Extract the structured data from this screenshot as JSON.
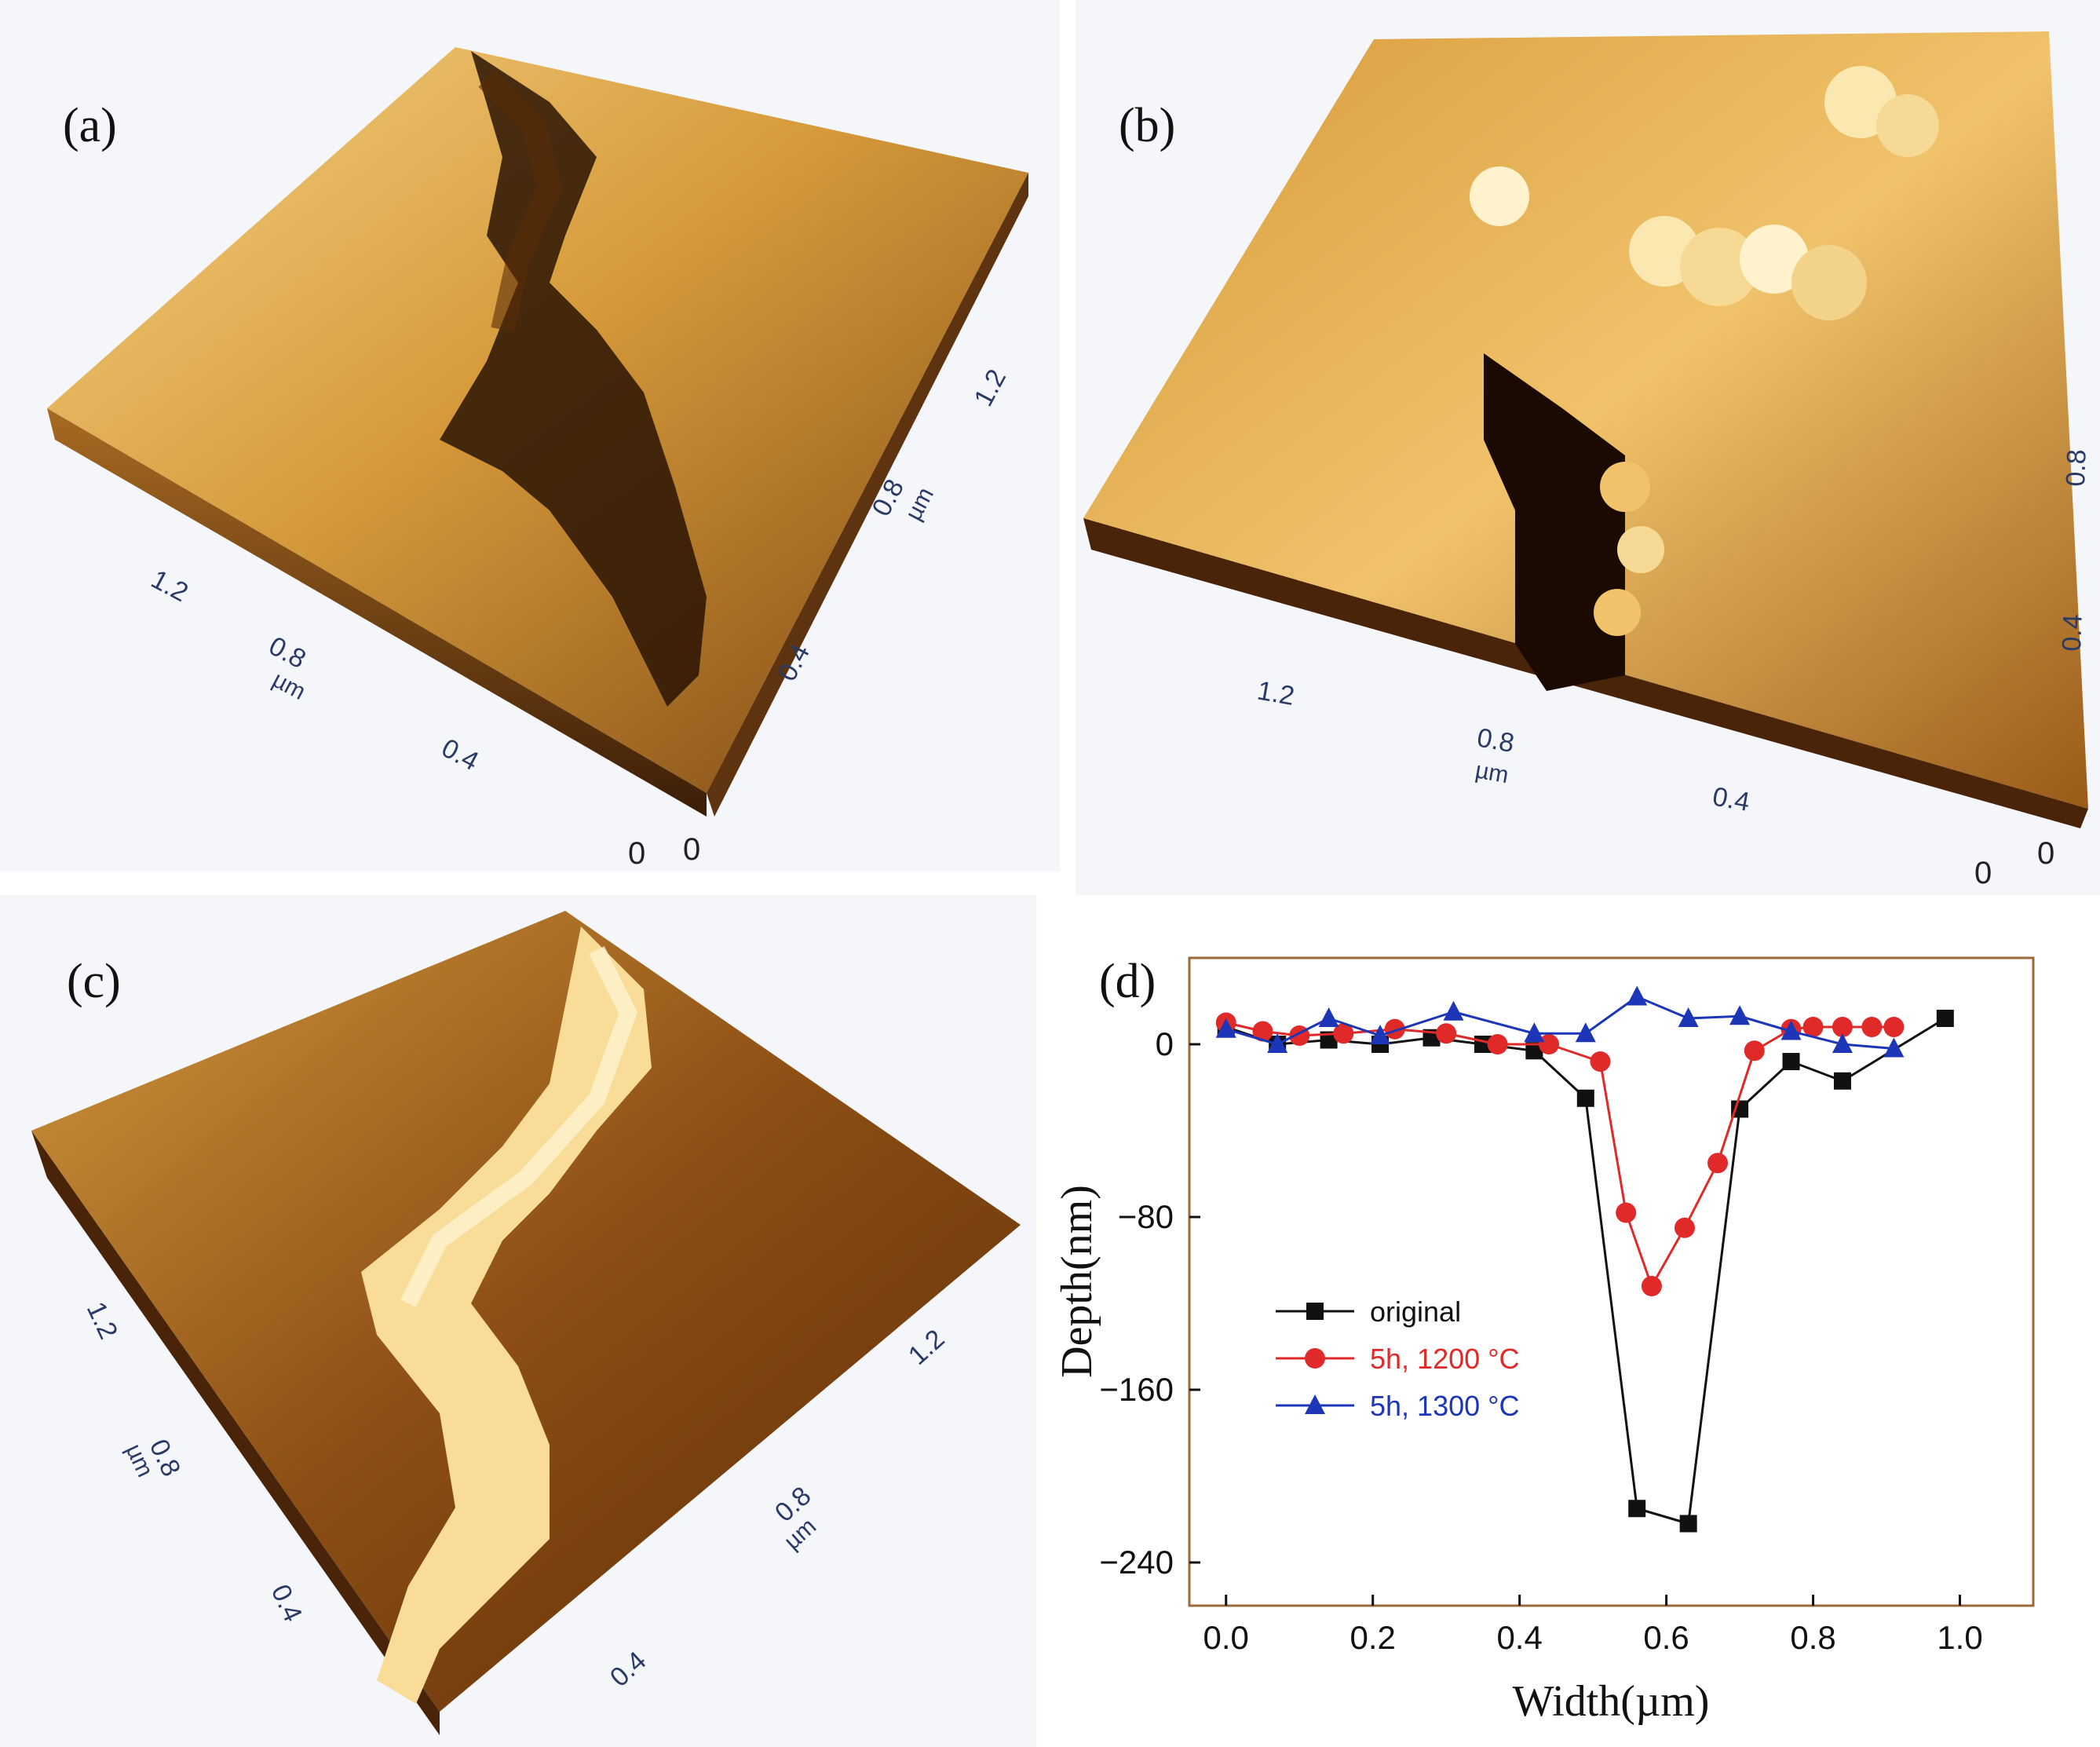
{
  "panels": {
    "a": {
      "label": "(a)",
      "ticks": [
        "1.2",
        "0.8",
        "0.4",
        "0.8",
        "0.4",
        "1.2"
      ],
      "unit": "µm",
      "zeros": [
        "0",
        "0"
      ]
    },
    "b": {
      "label": "(b)",
      "ticks": [
        "1.2",
        "0.8",
        "0.4",
        "0.8",
        "0.4"
      ],
      "unit": "µm",
      "zeros": [
        "0",
        "0"
      ]
    },
    "c": {
      "label": "(c)",
      "ticks": [
        "1.2",
        "0.8",
        "0.4",
        "0.4",
        "0.8",
        "1.2"
      ],
      "unit": "µm"
    },
    "d": {
      "label": "(d)"
    }
  },
  "colors": {
    "tan_light": "#f3cf7e",
    "tan_mid": "#c98a2c",
    "brown_dark": "#5a2c08",
    "black_ish": "#1a0c04",
    "bg": "#ffffff"
  },
  "chart_data": {
    "type": "line",
    "xlabel": "Width(µm)",
    "ylabel": "Depth(nm)",
    "xlim": [
      -0.05,
      1.1
    ],
    "ylim": [
      -260,
      40
    ],
    "xticks": [
      0.0,
      0.2,
      0.4,
      0.6,
      0.8,
      1.0
    ],
    "xtick_labels": [
      "0.0",
      "0.2",
      "0.4",
      "0.6",
      "0.8",
      "1.0"
    ],
    "yticks": [
      0,
      -80,
      -160,
      -240
    ],
    "ytick_labels": [
      "0",
      "−80",
      "−160",
      "−240"
    ],
    "legend_position": "center-left",
    "series": [
      {
        "name": "original",
        "color": "#111111",
        "marker": "square",
        "x": [
          0.0,
          0.07,
          0.14,
          0.21,
          0.28,
          0.35,
          0.42,
          0.49,
          0.56,
          0.63,
          0.7,
          0.77,
          0.84,
          0.98
        ],
        "y": [
          8,
          0,
          2,
          0,
          3,
          0,
          -3,
          -25,
          -215,
          -222,
          -30,
          -8,
          -17,
          12
        ]
      },
      {
        "name": "5h, 1200 °C",
        "color": "#e02a2a",
        "marker": "circle",
        "x": [
          0.0,
          0.05,
          0.1,
          0.16,
          0.23,
          0.3,
          0.37,
          0.44,
          0.51,
          0.545,
          0.58,
          0.625,
          0.67,
          0.72,
          0.77,
          0.8,
          0.84,
          0.88,
          0.91
        ],
        "y": [
          10,
          6,
          4,
          5,
          7,
          5,
          0,
          0,
          -8,
          -78,
          -112,
          -85,
          -55,
          -3,
          7,
          8,
          8,
          8,
          8
        ]
      },
      {
        "name": "5h, 1300 °C",
        "color": "#1d36b8",
        "marker": "triangle",
        "x": [
          0.0,
          0.07,
          0.14,
          0.21,
          0.31,
          0.42,
          0.49,
          0.56,
          0.63,
          0.7,
          0.77,
          0.84,
          0.91
        ],
        "y": [
          7,
          0,
          12,
          4,
          15,
          5,
          5,
          22,
          12,
          13,
          6,
          0,
          -2
        ]
      }
    ]
  }
}
